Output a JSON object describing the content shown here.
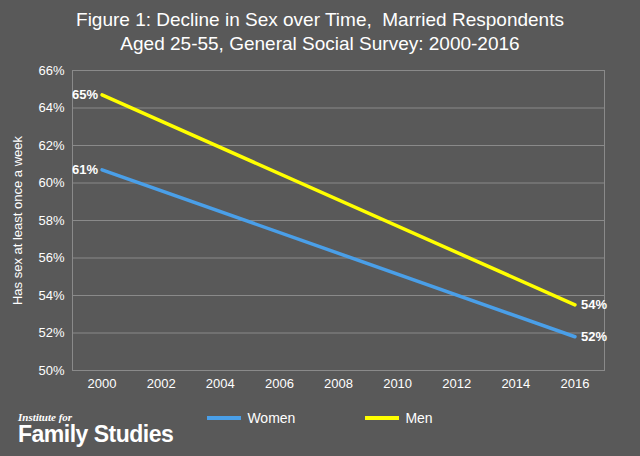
{
  "chart_data": {
    "type": "line",
    "title": "Figure 1: Decline in Sex over Time,  Married Respondents",
    "subtitle": "Aged 25-55, General Social Survey: 2000-2016",
    "y_label": "Has sex at least once a week",
    "x": [
      2000,
      2016
    ],
    "series": [
      {
        "name": "Women",
        "color": "#4a9fe8",
        "values": [
          60.7,
          51.8
        ],
        "value_labels": [
          "61%",
          "52%"
        ]
      },
      {
        "name": "Men",
        "color": "#ffff00",
        "values": [
          64.7,
          53.5
        ],
        "value_labels": [
          "65%",
          "54%"
        ]
      }
    ],
    "xlim": [
      1999,
      2017
    ],
    "xticks": [
      2000,
      2002,
      2004,
      2006,
      2008,
      2010,
      2012,
      2014,
      2016
    ],
    "ylim": [
      50,
      66
    ],
    "yticks": [
      {
        "value": 50,
        "label": "50%"
      },
      {
        "value": 52,
        "label": "52%"
      },
      {
        "value": 54,
        "label": "54%"
      },
      {
        "value": 56,
        "label": "56%"
      },
      {
        "value": 58,
        "label": "58%"
      },
      {
        "value": 60,
        "label": "60%"
      },
      {
        "value": 62,
        "label": "62%"
      },
      {
        "value": 64,
        "label": "64%"
      },
      {
        "value": 66,
        "label": "66%"
      }
    ],
    "grid": true,
    "data_labels": true,
    "legend": "bottom",
    "annotations": [
      "Institute for",
      "Family Studies"
    ]
  }
}
